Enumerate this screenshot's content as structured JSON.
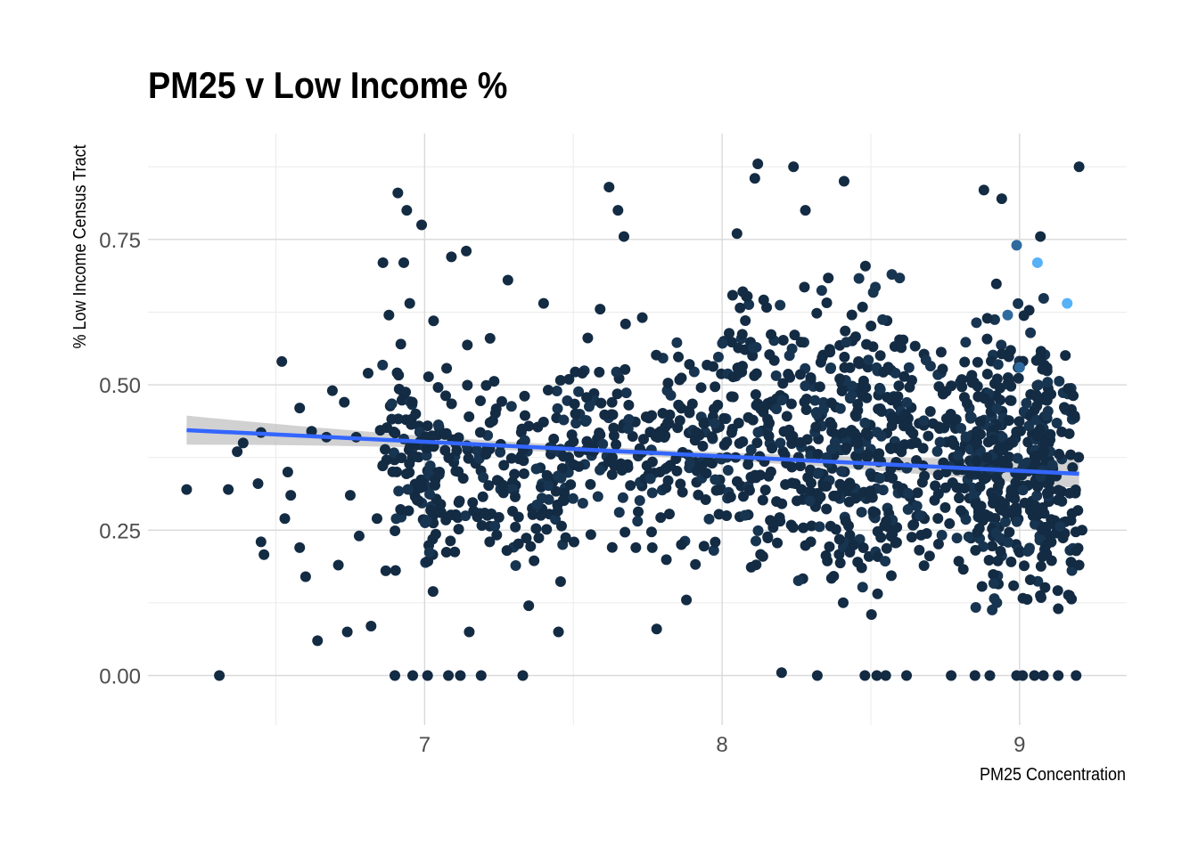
{
  "chart_data": {
    "type": "scatter",
    "title": "PM25 v Low Income %",
    "xlabel": "PM25 Concentration",
    "ylabel": "% Low Income Census Tract",
    "xlim": [
      6.07,
      9.36
    ],
    "ylim": [
      -0.085,
      0.932
    ],
    "x_ticks": [
      7,
      8,
      9
    ],
    "x_tick_labels": [
      "7",
      "8",
      "9"
    ],
    "y_ticks": [
      0,
      0.25,
      0.5,
      0.75
    ],
    "y_tick_labels": [
      "0.00",
      "0.25",
      "0.50",
      "0.75"
    ],
    "grid": true,
    "legend": "none",
    "point_color": "#132B43",
    "point_color_high": "#56B1F7",
    "trend_line": {
      "method": "linear",
      "x_range": [
        6.2,
        9.2
      ],
      "y_start": 0.422,
      "y_end": 0.347,
      "color": "#3366FF",
      "confidence_band_color": "#BEBEBE",
      "band_half_width_ends": 0.025,
      "band_half_width_mid": 0.006
    },
    "highlighted_points": [
      {
        "x": 9.06,
        "y": 0.71
      },
      {
        "x": 9.16,
        "y": 0.64
      },
      {
        "x": 8.99,
        "y": 0.74
      },
      {
        "x": 8.96,
        "y": 0.62
      },
      {
        "x": 9.0,
        "y": 0.53
      }
    ],
    "points": [
      {
        "x": 6.2,
        "y": 0.32
      },
      {
        "x": 6.31,
        "y": 0.0
      },
      {
        "x": 6.34,
        "y": 0.32
      },
      {
        "x": 6.37,
        "y": 0.385
      },
      {
        "x": 6.39,
        "y": 0.4
      },
      {
        "x": 6.44,
        "y": 0.33
      },
      {
        "x": 6.45,
        "y": 0.418
      },
      {
        "x": 6.45,
        "y": 0.23
      },
      {
        "x": 6.46,
        "y": 0.208
      },
      {
        "x": 6.52,
        "y": 0.54
      },
      {
        "x": 6.53,
        "y": 0.27
      },
      {
        "x": 6.54,
        "y": 0.35
      },
      {
        "x": 6.55,
        "y": 0.31
      },
      {
        "x": 6.58,
        "y": 0.46
      },
      {
        "x": 6.58,
        "y": 0.22
      },
      {
        "x": 6.6,
        "y": 0.17
      },
      {
        "x": 6.62,
        "y": 0.42
      },
      {
        "x": 6.64,
        "y": 0.06
      },
      {
        "x": 6.67,
        "y": 0.41
      },
      {
        "x": 6.69,
        "y": 0.49
      },
      {
        "x": 6.71,
        "y": 0.19
      },
      {
        "x": 6.73,
        "y": 0.47
      },
      {
        "x": 6.74,
        "y": 0.075
      },
      {
        "x": 6.75,
        "y": 0.31
      },
      {
        "x": 6.77,
        "y": 0.41
      },
      {
        "x": 6.78,
        "y": 0.24
      },
      {
        "x": 6.81,
        "y": 0.52
      },
      {
        "x": 6.82,
        "y": 0.085
      },
      {
        "x": 6.84,
        "y": 0.27
      },
      {
        "x": 6.86,
        "y": 0.71
      },
      {
        "x": 6.88,
        "y": 0.62
      },
      {
        "x": 6.9,
        "y": 0.0
      },
      {
        "x": 6.91,
        "y": 0.83
      },
      {
        "x": 6.92,
        "y": 0.57
      },
      {
        "x": 6.93,
        "y": 0.71
      },
      {
        "x": 6.94,
        "y": 0.8
      },
      {
        "x": 6.95,
        "y": 0.64
      },
      {
        "x": 6.96,
        "y": 0.0
      },
      {
        "x": 6.97,
        "y": 0.45
      },
      {
        "x": 6.99,
        "y": 0.775
      },
      {
        "x": 7.01,
        "y": 0.0
      },
      {
        "x": 7.03,
        "y": 0.61
      },
      {
        "x": 7.05,
        "y": 0.35
      },
      {
        "x": 7.08,
        "y": 0.0
      },
      {
        "x": 7.09,
        "y": 0.72
      },
      {
        "x": 7.12,
        "y": 0.0
      },
      {
        "x": 7.14,
        "y": 0.73
      },
      {
        "x": 7.15,
        "y": 0.075
      },
      {
        "x": 7.19,
        "y": 0.0
      },
      {
        "x": 7.22,
        "y": 0.58
      },
      {
        "x": 7.28,
        "y": 0.68
      },
      {
        "x": 7.33,
        "y": 0.0
      },
      {
        "x": 7.35,
        "y": 0.12
      },
      {
        "x": 7.4,
        "y": 0.64
      },
      {
        "x": 7.45,
        "y": 0.075
      },
      {
        "x": 7.53,
        "y": 0.52
      },
      {
        "x": 7.59,
        "y": 0.63
      },
      {
        "x": 7.62,
        "y": 0.84
      },
      {
        "x": 7.65,
        "y": 0.8
      },
      {
        "x": 7.67,
        "y": 0.755
      },
      {
        "x": 7.71,
        "y": 0.22
      },
      {
        "x": 7.78,
        "y": 0.08
      },
      {
        "x": 7.88,
        "y": 0.13
      },
      {
        "x": 8.05,
        "y": 0.76
      },
      {
        "x": 8.12,
        "y": 0.88
      },
      {
        "x": 8.11,
        "y": 0.855
      },
      {
        "x": 8.2,
        "y": 0.005
      },
      {
        "x": 8.24,
        "y": 0.875
      },
      {
        "x": 8.28,
        "y": 0.8
      },
      {
        "x": 8.32,
        "y": 0.0
      },
      {
        "x": 8.41,
        "y": 0.85
      },
      {
        "x": 8.48,
        "y": 0.0
      },
      {
        "x": 8.52,
        "y": 0.0
      },
      {
        "x": 8.55,
        "y": 0.0
      },
      {
        "x": 8.62,
        "y": 0.0
      },
      {
        "x": 8.77,
        "y": 0.0
      },
      {
        "x": 8.85,
        "y": 0.0
      },
      {
        "x": 8.88,
        "y": 0.835
      },
      {
        "x": 8.94,
        "y": 0.82
      },
      {
        "x": 8.9,
        "y": 0.0
      },
      {
        "x": 8.99,
        "y": 0.0
      },
      {
        "x": 9.01,
        "y": 0.0
      },
      {
        "x": 9.05,
        "y": 0.0
      },
      {
        "x": 9.08,
        "y": 0.0
      },
      {
        "x": 9.13,
        "y": 0.0
      },
      {
        "x": 9.19,
        "y": 0.0
      },
      {
        "x": 9.2,
        "y": 0.875
      },
      {
        "x": 9.21,
        "y": 0.25
      },
      {
        "x": 9.2,
        "y": 0.19
      },
      {
        "x": 9.07,
        "y": 0.755
      }
    ],
    "clusters": [
      {
        "x_range": [
          6.85,
          7.05
        ],
        "y_range": [
          0.12,
          0.6
        ],
        "count": 90
      },
      {
        "x_range": [
          7.0,
          7.5
        ],
        "y_range": [
          0.1,
          0.6
        ],
        "count": 190
      },
      {
        "x_range": [
          7.5,
          8.0
        ],
        "y_range": [
          0.15,
          0.65
        ],
        "count": 200
      },
      {
        "x_range": [
          8.0,
          8.35
        ],
        "y_range": [
          0.07,
          0.75
        ],
        "count": 210
      },
      {
        "x_range": [
          8.35,
          8.6
        ],
        "y_range": [
          0.05,
          0.75
        ],
        "count": 220
      },
      {
        "x_range": [
          8.6,
          8.85
        ],
        "y_range": [
          0.08,
          0.7
        ],
        "count": 150
      },
      {
        "x_range": [
          8.85,
          9.1
        ],
        "y_range": [
          0.03,
          0.7
        ],
        "count": 280
      },
      {
        "x_range": [
          9.05,
          9.2
        ],
        "y_range": [
          0.05,
          0.65
        ],
        "count": 110
      }
    ]
  }
}
